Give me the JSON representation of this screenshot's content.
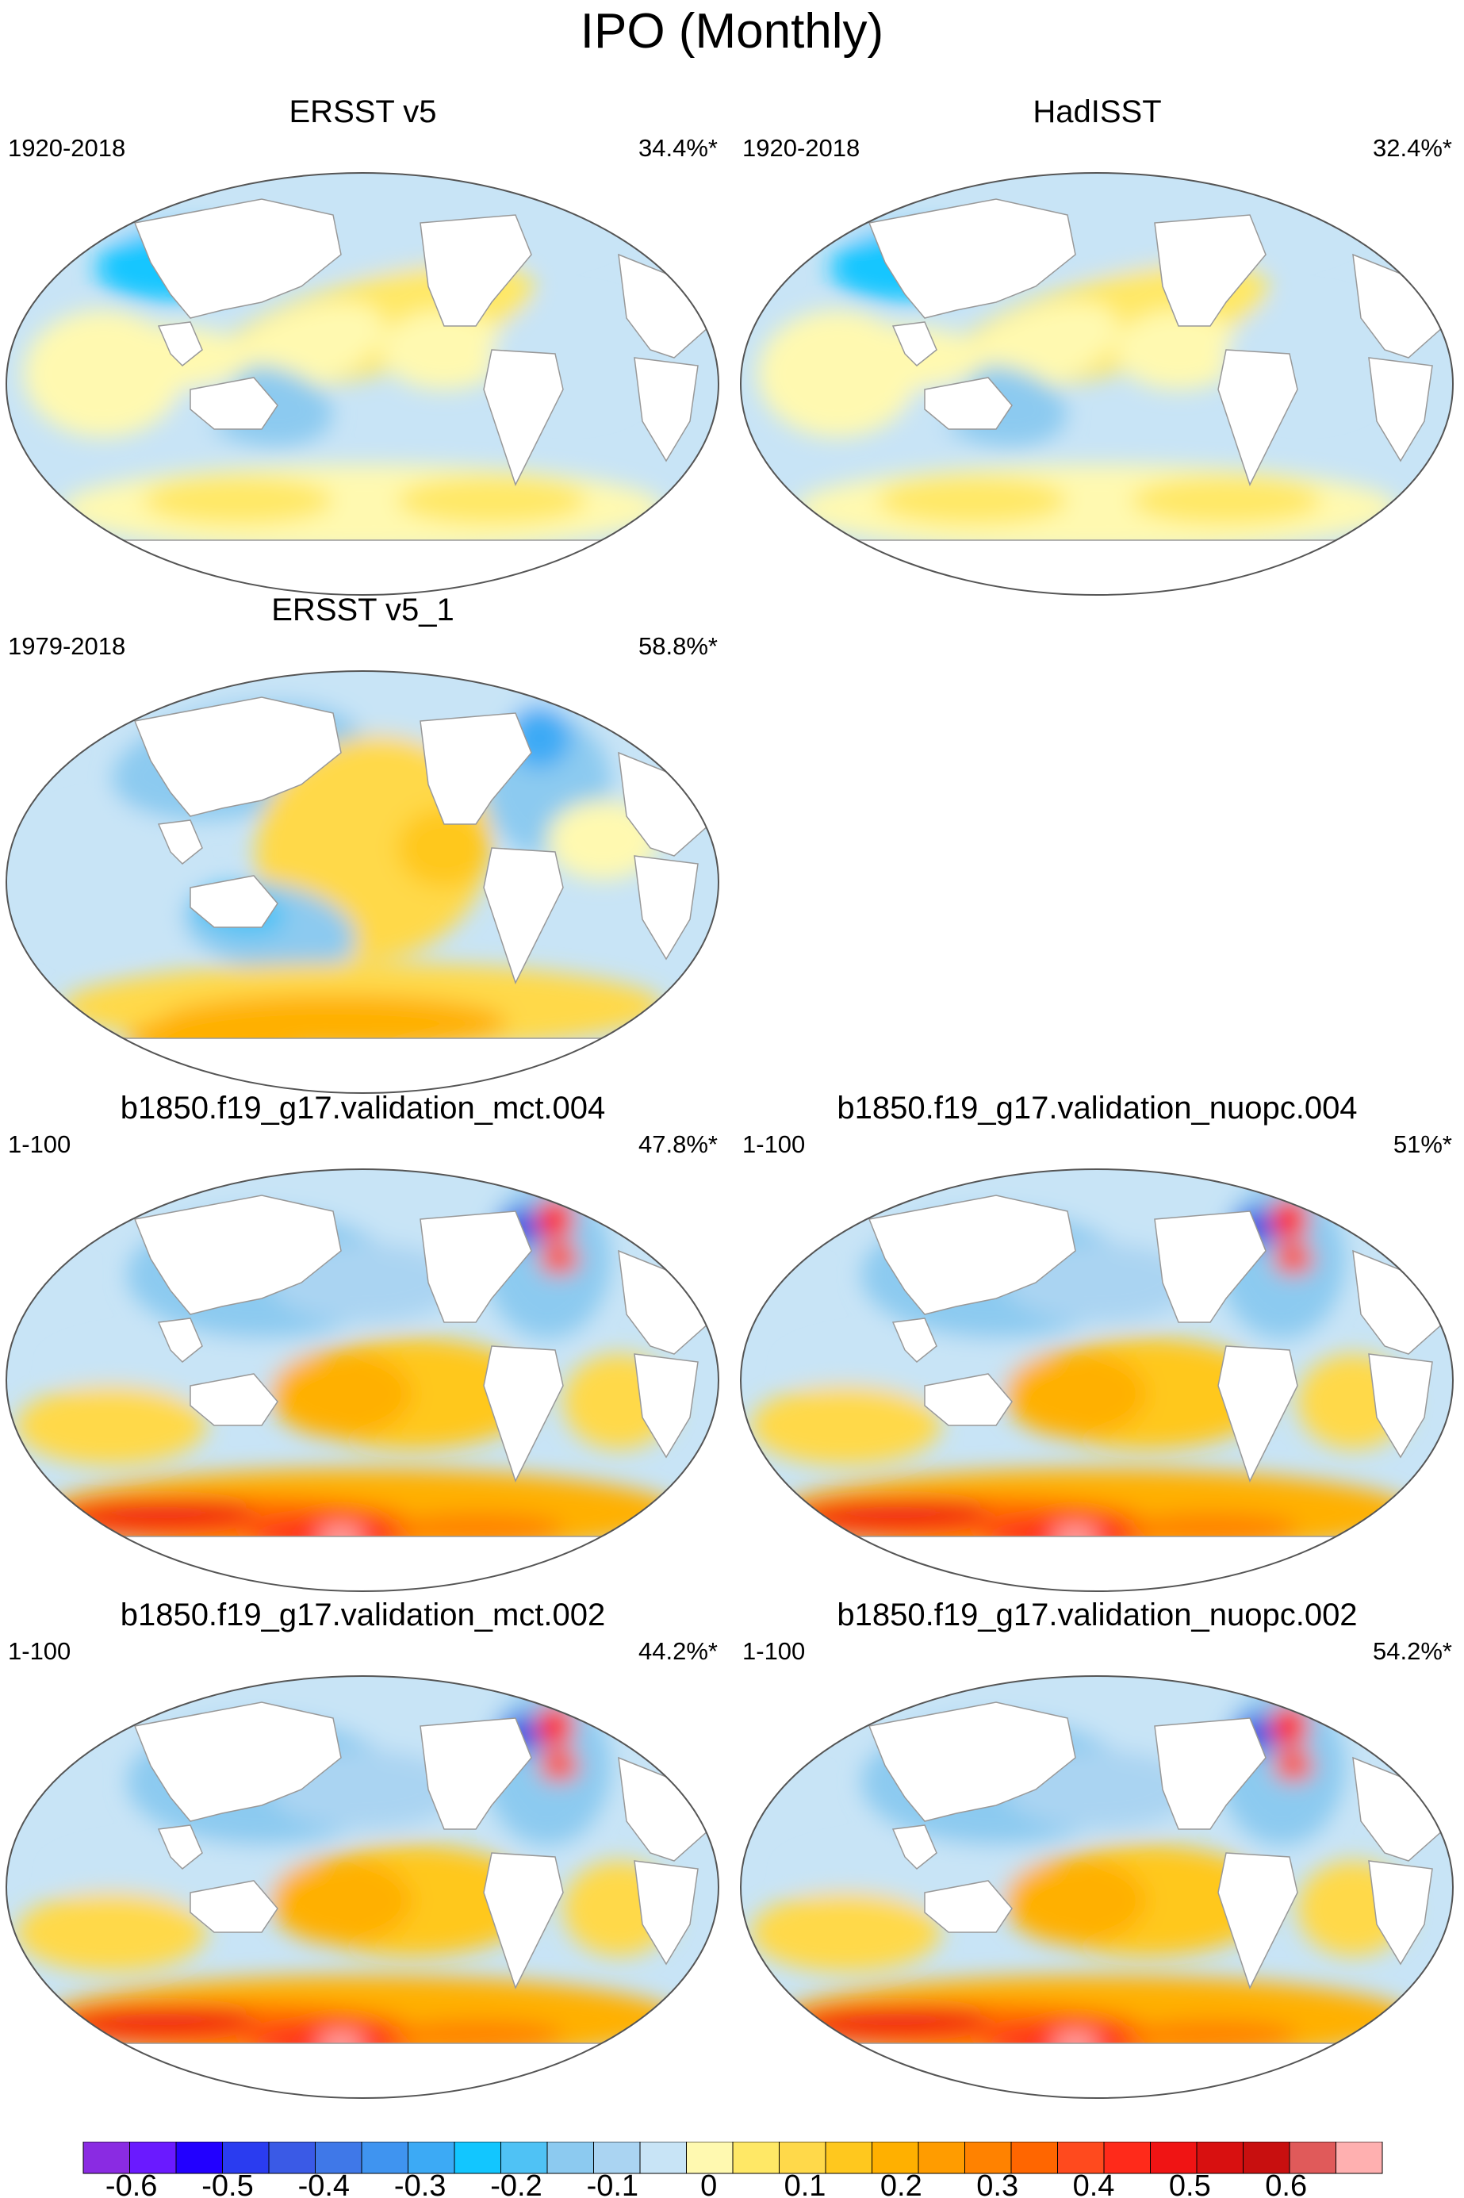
{
  "figure": {
    "title": "IPO (Monthly)"
  },
  "chart_data": [
    {
      "type": "heatmap",
      "title": "ERSST v5",
      "left_label": "1920-2018",
      "right_label": "34.4%*",
      "pattern": "obs_weak",
      "projection": "Winkel tripel",
      "field": "SST regression onto IPO index"
    },
    {
      "type": "heatmap",
      "title": "HadISST",
      "left_label": "1920-2018",
      "right_label": "32.4%*",
      "pattern": "obs_weak",
      "projection": "Winkel tripel",
      "field": "SST regression onto IPO index"
    },
    {
      "type": "heatmap",
      "title": "ERSST v5_1",
      "left_label": "1979-2018",
      "right_label": "58.8%*",
      "pattern": "obs_strong",
      "projection": "Winkel tripel",
      "field": "SST regression onto IPO index"
    },
    {
      "type": "heatmap",
      "title": "b1850.f19_g17.validation_mct.004",
      "left_label": "1-100",
      "right_label": "47.8%*",
      "pattern": "model",
      "projection": "Winkel tripel",
      "field": "SST regression onto IPO index"
    },
    {
      "type": "heatmap",
      "title": "b1850.f19_g17.validation_nuopc.004",
      "left_label": "1-100",
      "right_label": "51%*",
      "pattern": "model",
      "projection": "Winkel tripel",
      "field": "SST regression onto IPO index"
    },
    {
      "type": "heatmap",
      "title": "b1850.f19_g17.validation_mct.002",
      "left_label": "1-100",
      "right_label": "44.2%*",
      "pattern": "model",
      "projection": "Winkel tripel",
      "field": "SST regression onto IPO index"
    },
    {
      "type": "heatmap",
      "title": "b1850.f19_g17.validation_nuopc.002",
      "left_label": "1-100",
      "right_label": "54.2%*",
      "pattern": "model",
      "projection": "Winkel tripel",
      "field": "SST regression onto IPO index"
    }
  ],
  "colorbar": {
    "colors": [
      "#8a2be2",
      "#6a1aff",
      "#2200ff",
      "#2a3cf0",
      "#3a5ae6",
      "#3f78e8",
      "#3f94f0",
      "#3caaf5",
      "#12c6ff",
      "#4fc2f5",
      "#8ccaf0",
      "#aad4f2",
      "#c8e4f6",
      "#fff9b0",
      "#ffe866",
      "#ffd94a",
      "#ffc81e",
      "#ffb000",
      "#ff9c00",
      "#ff8200",
      "#ff6600",
      "#ff4a1e",
      "#ff2a1a",
      "#f01414",
      "#d81010",
      "#c80f0f",
      "#e05a5a",
      "#ffb0b0"
    ],
    "tick_labels": [
      "-0.6",
      "-0.5",
      "-0.4",
      "-0.3",
      "-0.2",
      "-0.1",
      "0",
      "0.1",
      "0.2",
      "0.3",
      "0.4",
      "0.5",
      "0.6"
    ],
    "tick_values": [
      -0.6,
      -0.5,
      -0.4,
      -0.3,
      -0.2,
      -0.1,
      0,
      0.1,
      0.2,
      0.3,
      0.4,
      0.5,
      0.6
    ]
  }
}
